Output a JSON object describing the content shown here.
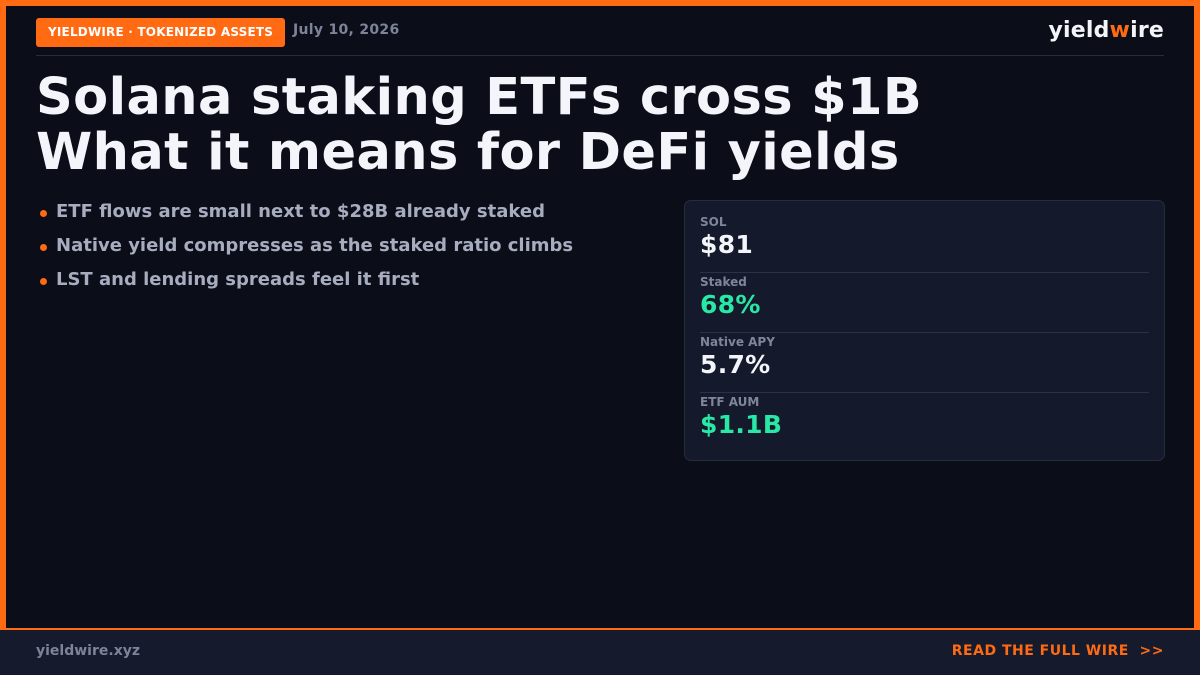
{
  "header": {
    "badge": "YIELDWIRE · TOKENIZED ASSETS",
    "date": "July 10, 2026",
    "logo_prefix": "yield",
    "logo_accent": "w",
    "logo_suffix": "ire"
  },
  "headline": {
    "line1": "Solana staking ETFs cross $1B",
    "line2": "What it means for DeFi yields"
  },
  "bullets": [
    "ETF flows are small next to $28B already staked",
    "Native yield compresses as the staked ratio climbs",
    "LST and lending spreads feel it first"
  ],
  "stats": [
    {
      "label": "SOL",
      "value": "$81",
      "color": "#f4f5fa"
    },
    {
      "label": "Staked",
      "value": "68%",
      "color": "#29e8a6"
    },
    {
      "label": "Native APY",
      "value": "5.7%",
      "color": "#f4f5fa"
    },
    {
      "label": "ETF AUM",
      "value": "$1.1B",
      "color": "#29e8a6"
    }
  ],
  "footer": {
    "url": "yieldwire.xyz",
    "cta": "READ THE FULL WIRE  >>"
  },
  "colors": {
    "accent": "#ff6a13",
    "positive": "#29e8a6",
    "background": "#0b0e19"
  }
}
